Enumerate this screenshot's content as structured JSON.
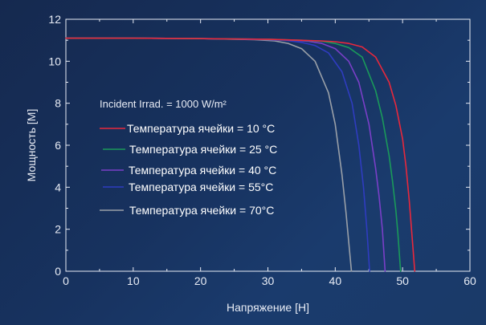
{
  "chart_data": {
    "type": "line",
    "title": "",
    "xlabel": "Напряжение [Н]",
    "ylabel": "Мощность [М]",
    "xlim": [
      0,
      60
    ],
    "ylim": [
      0,
      12
    ],
    "xticks": [
      "0",
      "10",
      "20",
      "30",
      "40",
      "50",
      "60"
    ],
    "yticks": [
      "0",
      "2",
      "4",
      "6",
      "8",
      "10",
      "12"
    ],
    "grid": false,
    "legend_position": "center-left",
    "annotation": "Incident Irrad. = 1000 W/m²",
    "series": [
      {
        "name": "Температура ячейки = 10 °C",
        "color": "#e8283c",
        "x": [
          0,
          10,
          20,
          30,
          35,
          38,
          40,
          42,
          44,
          46,
          48,
          49,
          50,
          50.5,
          51,
          51.5,
          51.8
        ],
        "y": [
          11.1,
          11.1,
          11.08,
          11.05,
          11.0,
          10.97,
          10.93,
          10.85,
          10.68,
          10.2,
          9.0,
          7.9,
          6.3,
          5.0,
          3.3,
          1.3,
          0
        ]
      },
      {
        "name": "Температура ячейки = 25 °C",
        "color": "#1a9a5a",
        "x": [
          0,
          10,
          20,
          30,
          35,
          38,
          40,
          42,
          44,
          46,
          47,
          48,
          48.5,
          49,
          49.3,
          49.7
        ],
        "y": [
          11.1,
          11.1,
          11.08,
          11.05,
          11.0,
          10.95,
          10.85,
          10.65,
          10.2,
          8.6,
          7.3,
          5.5,
          4.3,
          2.9,
          1.8,
          0
        ]
      },
      {
        "name": "Температура ячейки = 40 °C",
        "color": "#7a3fc8",
        "x": [
          0,
          10,
          20,
          30,
          34,
          36,
          38,
          40,
          42,
          43.5,
          45,
          46,
          46.5,
          47,
          47.4
        ],
        "y": [
          11.1,
          11.1,
          11.08,
          11.05,
          11.0,
          10.95,
          10.85,
          10.6,
          10.0,
          9.0,
          7.0,
          4.9,
          3.6,
          2.0,
          0
        ]
      },
      {
        "name": "Температура ячейки =  55°C",
        "color": "#2f3cc0",
        "x": [
          0,
          10,
          20,
          30,
          33,
          35,
          37,
          39,
          41,
          42.5,
          43.5,
          44.2,
          44.7,
          45.1
        ],
        "y": [
          11.1,
          11.1,
          11.08,
          11.03,
          10.98,
          10.9,
          10.75,
          10.4,
          9.5,
          8.0,
          6.0,
          4.0,
          2.0,
          0
        ]
      },
      {
        "name": "Температура ячейки =  70°C",
        "color": "#9aa0a8",
        "x": [
          0,
          10,
          20,
          28,
          31,
          33,
          35,
          37,
          39,
          40,
          41,
          41.6,
          42,
          42.4
        ],
        "y": [
          11.1,
          11.1,
          11.08,
          11.03,
          10.97,
          10.85,
          10.6,
          10.0,
          8.5,
          7.0,
          4.6,
          2.8,
          1.4,
          0
        ]
      }
    ]
  }
}
